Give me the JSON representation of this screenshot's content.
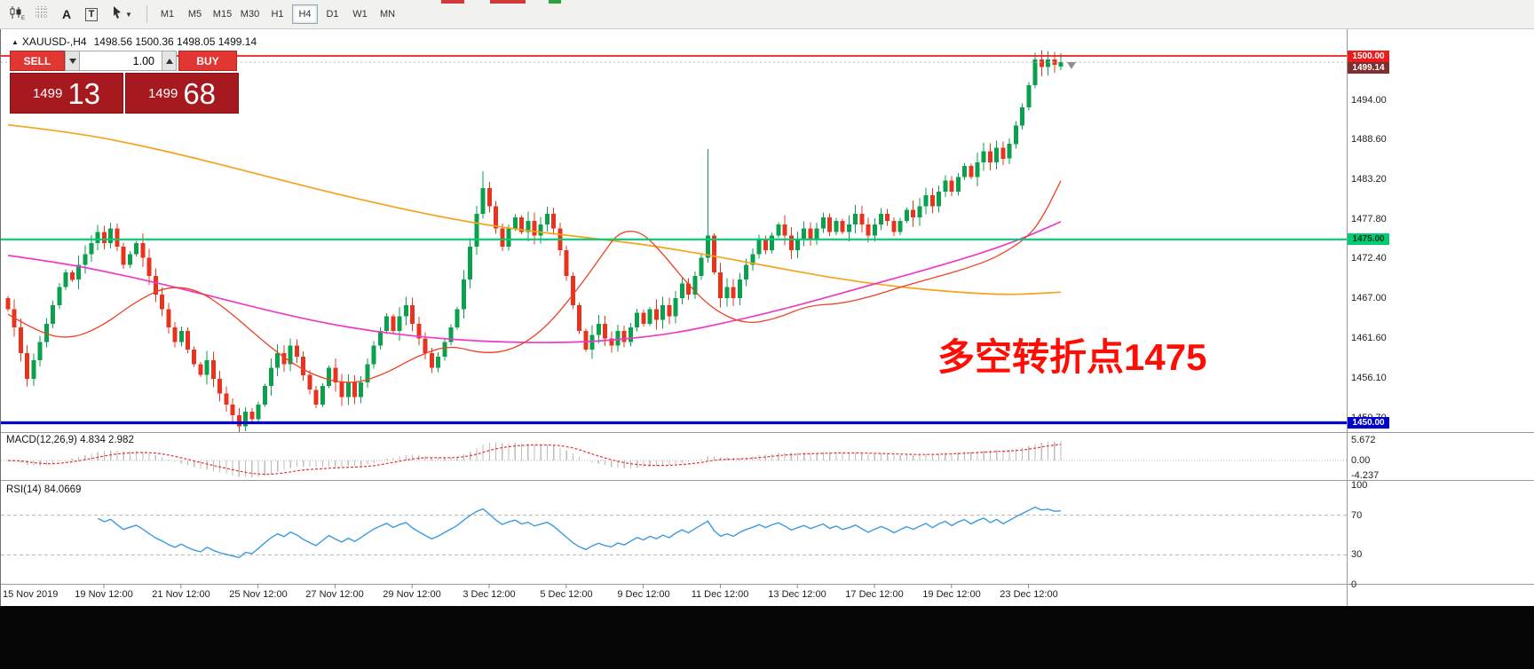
{
  "toolbar": {
    "text_tool_glyph": "A",
    "textbox_tool_glyph": "T",
    "timeframes": [
      "M1",
      "M5",
      "M15",
      "M30",
      "H1",
      "H4",
      "D1",
      "W1",
      "MN"
    ],
    "active_timeframe": "H4"
  },
  "chart": {
    "header": {
      "marker": "▲",
      "symbol": "XAUUSD-,H4",
      "ohlc": "1498.56 1500.36 1498.05 1499.14"
    },
    "annotation": "多空转折点1475",
    "time_axis": [
      "15 Nov 2019",
      "19 Nov 12:00",
      "21 Nov 12:00",
      "25 Nov 12:00",
      "27 Nov 12:00",
      "29 Nov 12:00",
      "3 Dec 12:00",
      "5 Dec 12:00",
      "9 Dec 12:00",
      "11 Dec 12:00",
      "13 Dec 12:00",
      "17 Dec 12:00",
      "19 Dec 12:00",
      "23 Dec 12:00"
    ],
    "price_axis": {
      "gridlines": [
        {
          "label": "1494.00",
          "price": 1494.0
        },
        {
          "label": "1488.60",
          "price": 1488.6
        },
        {
          "label": "1483.20",
          "price": 1483.2
        },
        {
          "label": "1477.80",
          "price": 1477.8
        },
        {
          "label": "1472.40",
          "price": 1472.4
        },
        {
          "label": "1467.00",
          "price": 1467.0
        },
        {
          "label": "1461.60",
          "price": 1461.6
        },
        {
          "label": "1456.10",
          "price": 1456.1
        },
        {
          "label": "1450.70",
          "price": 1450.7
        }
      ],
      "badges": [
        {
          "label": "1500.00",
          "price": 1500.0,
          "bg": "#ec1c1c",
          "fg": "#ffffff"
        },
        {
          "label": "1499.14",
          "price": 1499.14,
          "bg": "#7d2f2f",
          "fg": "#ffffff"
        },
        {
          "label": "1475.00",
          "price": 1475.0,
          "bg": "#00cc72",
          "fg": "#06331a"
        },
        {
          "label": "1450.00",
          "price": 1450.0,
          "bg": "#0000cd",
          "fg": "#ffffff"
        }
      ]
    }
  },
  "trade_panel": {
    "sell_label": "SELL",
    "buy_label": "BUY",
    "volume": "1.00",
    "bid_big": "1499",
    "bid_pips": "13",
    "ask_big": "1499",
    "ask_pips": "68"
  },
  "macd_panel": {
    "label": "MACD(12,26,9) 4.834 2.982",
    "axis_values": [
      5.672,
      0.0,
      -4.237
    ],
    "axis_labels": [
      "5.672",
      "0.00",
      "-4.237"
    ]
  },
  "rsi_panel": {
    "label": "RSI(14) 84.0669",
    "axis_values": [
      100,
      70,
      30,
      0
    ],
    "axis_labels": [
      "100",
      "70",
      "30",
      "0"
    ],
    "levels": [
      70,
      30
    ]
  },
  "chart_data": {
    "type": "candlestick",
    "symbol": "XAUUSD-",
    "timeframe": "H4",
    "current_ohlc": {
      "open": 1498.56,
      "high": 1500.36,
      "low": 1498.05,
      "close": 1499.14
    },
    "first_open": 1467.0,
    "closes": [
      1465.5,
      1463.0,
      1459.5,
      1456.0,
      1458.5,
      1461.0,
      1463.5,
      1466.0,
      1468.5,
      1470.5,
      1469.5,
      1471.5,
      1473.0,
      1474.5,
      1476.0,
      1474.5,
      1476.5,
      1474.0,
      1471.5,
      1473.0,
      1474.5,
      1472.5,
      1470.0,
      1467.5,
      1465.5,
      1463.0,
      1461.0,
      1462.5,
      1460.0,
      1458.0,
      1456.5,
      1458.5,
      1456.0,
      1454.0,
      1452.5,
      1451.0,
      1449.5,
      1451.5,
      1450.5,
      1452.5,
      1455.0,
      1457.5,
      1459.5,
      1458.0,
      1460.5,
      1459.0,
      1456.5,
      1454.5,
      1452.5,
      1455.0,
      1457.5,
      1455.5,
      1453.5,
      1455.5,
      1453.5,
      1455.5,
      1458.0,
      1460.5,
      1462.5,
      1464.5,
      1462.5,
      1464.5,
      1466.0,
      1463.5,
      1461.5,
      1459.5,
      1457.5,
      1459.0,
      1461.0,
      1463.0,
      1465.5,
      1469.5,
      1474.0,
      1478.5,
      1482.0,
      1479.5,
      1476.5,
      1474.0,
      1476.5,
      1478.0,
      1476.0,
      1477.5,
      1475.5,
      1477.0,
      1478.5,
      1476.5,
      1473.5,
      1470.0,
      1466.0,
      1462.5,
      1460.0,
      1462.0,
      1463.5,
      1461.5,
      1460.5,
      1462.5,
      1461.0,
      1463.0,
      1465.0,
      1463.5,
      1465.5,
      1464.0,
      1466.0,
      1464.5,
      1467.0,
      1469.0,
      1467.5,
      1470.0,
      1472.5,
      1475.5,
      1470.5,
      1467.0,
      1468.5,
      1467.0,
      1469.5,
      1471.5,
      1473.0,
      1475.0,
      1473.5,
      1475.5,
      1477.0,
      1475.5,
      1473.5,
      1475.0,
      1476.5,
      1475.0,
      1476.5,
      1478.0,
      1476.0,
      1477.5,
      1476.0,
      1477.0,
      1478.5,
      1477.0,
      1475.5,
      1477.0,
      1478.5,
      1477.5,
      1476.0,
      1477.5,
      1479.0,
      1478.0,
      1479.5,
      1481.0,
      1479.5,
      1481.5,
      1483.0,
      1481.5,
      1483.5,
      1485.0,
      1483.5,
      1485.5,
      1487.0,
      1485.5,
      1487.5,
      1486.0,
      1488.0,
      1490.5,
      1493.0,
      1496.0,
      1499.5,
      1498.5,
      1499.5,
      1498.8,
      1499.14
    ],
    "candle_overrides": {
      "36": [
        1451.0,
        1452.0,
        1448.7,
        1449.5
      ],
      "74": [
        1478.5,
        1484.3,
        1477.8,
        1482.0
      ],
      "109": [
        1472.5,
        1487.3,
        1471.8,
        1475.5
      ],
      "160": [
        1496.0,
        1500.4,
        1495.6,
        1499.5
      ],
      "164": [
        1498.56,
        1500.36,
        1498.05,
        1499.14
      ]
    },
    "horizontal_levels": [
      {
        "price": 1500.0,
        "color": "#ec1c1c",
        "width": 1.8
      },
      {
        "price": 1475.0,
        "color": "#00cc72",
        "width": 2.2
      },
      {
        "price": 1450.0,
        "color": "#0000cd",
        "width": 3.2
      }
    ],
    "moving_averages": [
      {
        "name": "slow-ma",
        "color": "#f7a21b",
        "width": 1.7,
        "points": [
          [
            0,
            1490.6
          ],
          [
            0.06,
            1489.6
          ],
          [
            0.12,
            1488.0
          ],
          [
            0.18,
            1486.0
          ],
          [
            0.24,
            1483.8
          ],
          [
            0.3,
            1481.6
          ],
          [
            0.36,
            1479.6
          ],
          [
            0.42,
            1477.8
          ],
          [
            0.48,
            1476.4
          ],
          [
            0.54,
            1475.4
          ],
          [
            0.6,
            1474.4
          ],
          [
            0.66,
            1473.0
          ],
          [
            0.72,
            1471.4
          ],
          [
            0.78,
            1469.8
          ],
          [
            0.84,
            1468.6
          ],
          [
            0.9,
            1467.8
          ],
          [
            0.95,
            1467.4
          ],
          [
            1.0,
            1467.8
          ]
        ]
      },
      {
        "name": "medium-ma",
        "color": "#ec3bc6",
        "width": 1.7,
        "points": [
          [
            0,
            1472.8
          ],
          [
            0.05,
            1471.8
          ],
          [
            0.1,
            1470.4
          ],
          [
            0.15,
            1468.8
          ],
          [
            0.2,
            1467.0
          ],
          [
            0.25,
            1465.2
          ],
          [
            0.3,
            1463.6
          ],
          [
            0.35,
            1462.4
          ],
          [
            0.4,
            1461.6
          ],
          [
            0.45,
            1461.1
          ],
          [
            0.5,
            1460.9
          ],
          [
            0.55,
            1461.0
          ],
          [
            0.6,
            1461.6
          ],
          [
            0.64,
            1462.4
          ],
          [
            0.68,
            1463.6
          ],
          [
            0.72,
            1464.9
          ],
          [
            0.76,
            1466.4
          ],
          [
            0.8,
            1468.0
          ],
          [
            0.84,
            1469.6
          ],
          [
            0.88,
            1471.2
          ],
          [
            0.92,
            1472.9
          ],
          [
            0.96,
            1474.9
          ],
          [
            1.0,
            1477.4
          ]
        ]
      },
      {
        "name": "fast-ma",
        "color": "#ee4023",
        "width": 1.3,
        "points": [
          [
            0,
            1464.8
          ],
          [
            0.03,
            1462.2
          ],
          [
            0.06,
            1461.4
          ],
          [
            0.09,
            1463.2
          ],
          [
            0.12,
            1466.4
          ],
          [
            0.15,
            1468.6
          ],
          [
            0.18,
            1468.2
          ],
          [
            0.21,
            1465.2
          ],
          [
            0.24,
            1461.4
          ],
          [
            0.27,
            1458.0
          ],
          [
            0.3,
            1455.9
          ],
          [
            0.33,
            1455.3
          ],
          [
            0.36,
            1456.8
          ],
          [
            0.39,
            1459.2
          ],
          [
            0.42,
            1460.6
          ],
          [
            0.45,
            1459.4
          ],
          [
            0.48,
            1459.9
          ],
          [
            0.51,
            1462.8
          ],
          [
            0.54,
            1468.0
          ],
          [
            0.565,
            1473.0
          ],
          [
            0.58,
            1476.0
          ],
          [
            0.6,
            1476.2
          ],
          [
            0.62,
            1473.4
          ],
          [
            0.645,
            1469.0
          ],
          [
            0.67,
            1465.4
          ],
          [
            0.7,
            1463.4
          ],
          [
            0.73,
            1464.2
          ],
          [
            0.76,
            1466.0
          ],
          [
            0.79,
            1466.2
          ],
          [
            0.82,
            1467.2
          ],
          [
            0.85,
            1468.6
          ],
          [
            0.88,
            1469.8
          ],
          [
            0.91,
            1471.0
          ],
          [
            0.94,
            1472.6
          ],
          [
            0.97,
            1475.4
          ],
          [
            0.985,
            1478.6
          ],
          [
            1.0,
            1483.0
          ]
        ]
      }
    ],
    "indicators": {
      "macd": {
        "fast": 12,
        "slow": 26,
        "signal": 9,
        "main_value": 4.834,
        "signal_value": 2.982,
        "hist_color": "#bdbdbd",
        "signal_color": "#e63232"
      },
      "rsi": {
        "period": 14,
        "value": 84.0669,
        "color": "#3b9ae1",
        "levels": [
          70,
          30
        ]
      }
    },
    "candle_up_color": "#0aa04e",
    "candle_down_color": "#e8341f"
  }
}
